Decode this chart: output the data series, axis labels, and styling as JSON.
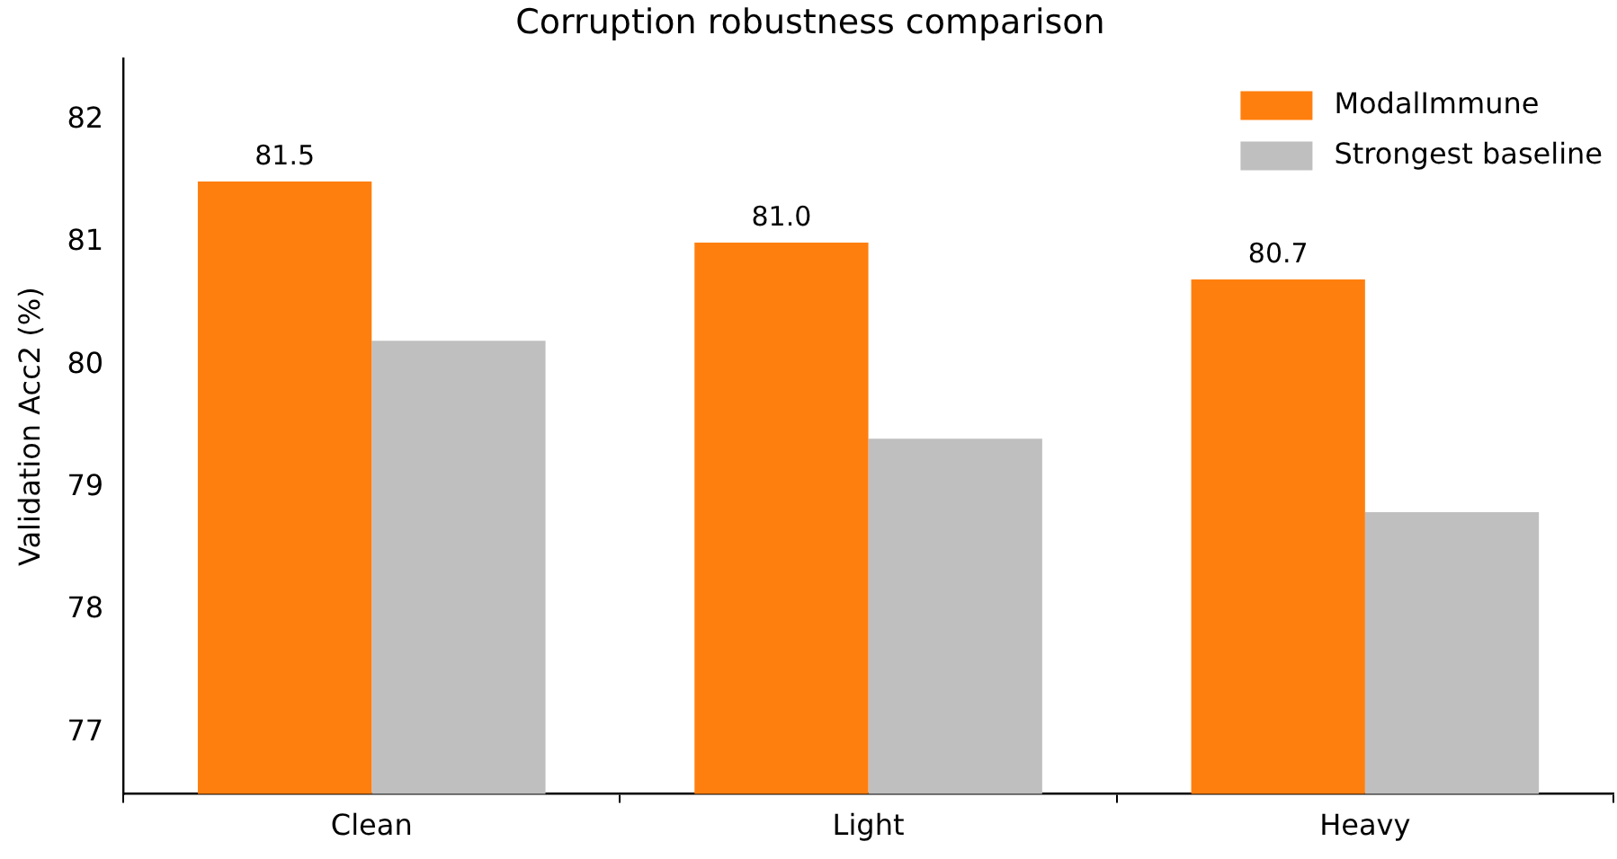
{
  "chart_data": {
    "type": "bar",
    "title": "Corruption robustness comparison",
    "ylabel": "Validation Acc2 (%)",
    "categories": [
      "Clean",
      "Light",
      "Heavy"
    ],
    "series": [
      {
        "name": "ModalImmune",
        "color": "#ff7f0e",
        "values": [
          81.5,
          81.0,
          80.7
        ],
        "value_labels": [
          "81.5",
          "81.0",
          "80.7"
        ]
      },
      {
        "name": "Strongest baseline",
        "color": "#bfbfbf",
        "values": [
          80.2,
          79.4,
          78.8
        ]
      }
    ],
    "ylim": [
      76.5,
      82.5
    ],
    "yticks": [
      77,
      78,
      79,
      80,
      81,
      82
    ],
    "grid": false,
    "legend": "top right"
  }
}
